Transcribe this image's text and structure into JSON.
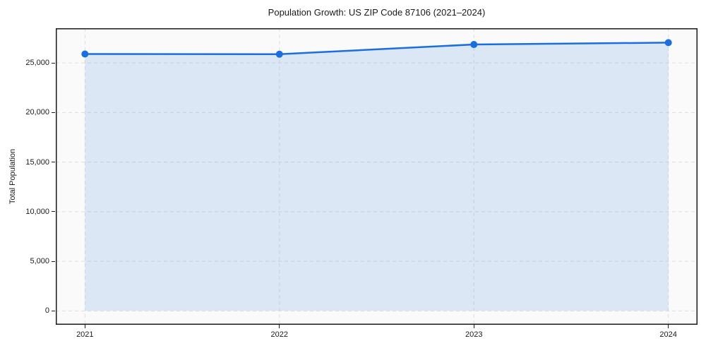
{
  "chart_data": {
    "type": "area",
    "title": "Population Growth: US ZIP Code 87106 (2021–2024)",
    "xlabel": "",
    "ylabel": "Total Population",
    "x": [
      2021,
      2022,
      2023,
      2024
    ],
    "series": [
      {
        "name": "Total Population",
        "values": [
          25900,
          25880,
          26860,
          27050
        ]
      }
    ],
    "fill_baseline": 0,
    "xlim": [
      2020.85,
      2024.15
    ],
    "ylim": [
      -1400,
      28500
    ],
    "xticks": {
      "values": [
        2021,
        2022,
        2023,
        2024
      ],
      "labels": [
        "2021",
        "2022",
        "2023",
        "2024"
      ]
    },
    "yticks": {
      "values": [
        0,
        5000,
        10000,
        15000,
        20000,
        25000
      ],
      "labels": [
        "0",
        "5,000",
        "10,000",
        "15,000",
        "20,000",
        "25,000"
      ]
    },
    "grid": true,
    "grid_style": "dashed",
    "legend": "none",
    "colors": {
      "line": "#1b6ee0",
      "marker": "#1b6ee0",
      "fill": "rgba(27,110,224,0.13)",
      "grid": "#dedede",
      "spine": "#1a1a1a",
      "plot_bg": "#fafafa",
      "fig_bg": "#ffffff",
      "text": "#1a1a1a"
    }
  }
}
